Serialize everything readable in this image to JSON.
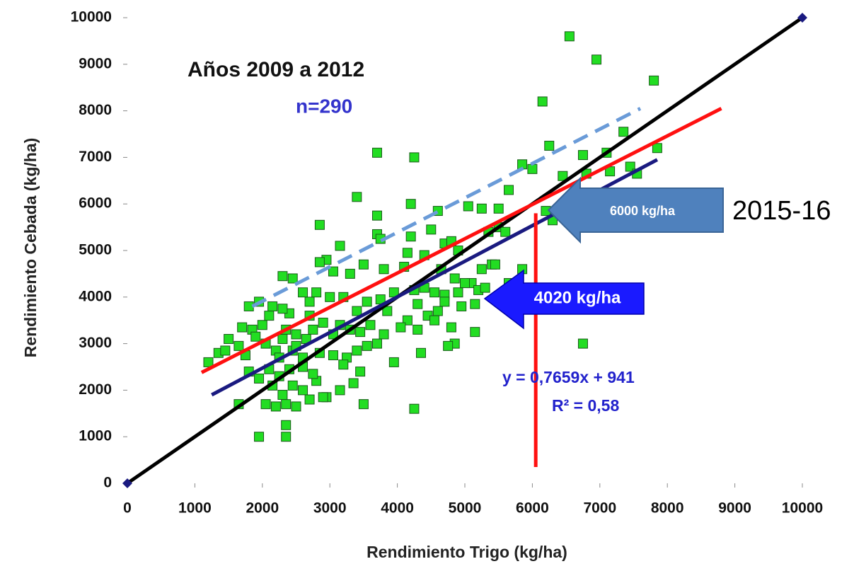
{
  "chart_data": {
    "type": "scatter",
    "xlabel": "Rendimiento Trigo (kg/ha)",
    "ylabel": "Rendimiento Cebada (kg/ha)",
    "xlim": [
      0,
      10000
    ],
    "ylim": [
      0,
      10000
    ],
    "xticks": [
      0,
      1000,
      2000,
      3000,
      4000,
      5000,
      6000,
      7000,
      8000,
      9000,
      10000
    ],
    "yticks": [
      0,
      1000,
      2000,
      3000,
      4000,
      5000,
      6000,
      7000,
      8000,
      9000,
      10000
    ],
    "grid": false,
    "annotations": [
      "Años 2009 a 2012",
      "n=290",
      "y = 0,7659x + 941",
      "R² = 0,58",
      "6000 kg/ha",
      "4020 kg/ha",
      "2015-16"
    ],
    "series": [
      {
        "mode": "markers",
        "color": "#22dd22",
        "x": [
          6550,
          6950,
          7800,
          6150,
          6250,
          7350,
          7100,
          6750,
          6800,
          7150,
          7450,
          7550,
          7850,
          6450,
          5850,
          6000,
          3700,
          4250,
          3400,
          4200,
          5650,
          5050,
          5500,
          6200,
          6300,
          4600,
          3700,
          2850,
          3150,
          3700,
          3750,
          4200,
          4500,
          4700,
          4800,
          5250,
          5350,
          5500,
          5600,
          4900,
          2950,
          2850,
          3050,
          3300,
          2300,
          2450,
          3500,
          3800,
          4100,
          4150,
          4400,
          4650,
          4850,
          5100,
          5250,
          5400,
          5850,
          5650,
          4250,
          4400,
          4550,
          4700,
          4900,
          5000,
          5200,
          5150,
          4700,
          4600,
          4450,
          4300,
          4150,
          3950,
          3750,
          3550,
          3400,
          3200,
          3000,
          2800,
          2700,
          2600,
          2400,
          2300,
          2150,
          1950,
          1800,
          2000,
          1700,
          1850,
          1500,
          1350,
          1200,
          1450,
          1650,
          1900,
          2050,
          2200,
          2350,
          2500,
          2650,
          2750,
          2900,
          3050,
          3150,
          3300,
          3450,
          3600,
          3800,
          4050,
          4300,
          4550,
          4800,
          4850,
          5150,
          4750,
          4350,
          3950,
          3550,
          3400,
          3250,
          3050,
          2850,
          2600,
          2450,
          2250,
          2100,
          1800,
          1950,
          2150,
          2300,
          2450,
          2600,
          2800,
          2950,
          3150,
          3350,
          3450,
          2350,
          2500,
          2700,
          2900,
          2200,
          2050,
          1650,
          1950,
          2350,
          2350,
          4250,
          3500,
          6750,
          2250,
          2400,
          2600,
          2750,
          3200,
          3700,
          3850,
          4950,
          5300,
          5450,
          2100,
          2300,
          1750,
          2500,
          2700
        ],
        "values": [
          9600,
          9100,
          8650,
          8200,
          7250,
          7550,
          7100,
          7050,
          6650,
          6700,
          6800,
          6650,
          7200,
          6600,
          6850,
          6750,
          7100,
          7000,
          6150,
          6000,
          6300,
          5950,
          5900,
          5850,
          5650,
          5850,
          5750,
          5550,
          5100,
          5350,
          5250,
          5300,
          5450,
          5150,
          5200,
          5900,
          5400,
          5500,
          5400,
          5000,
          4800,
          4750,
          4550,
          4500,
          4450,
          4400,
          4700,
          4600,
          4650,
          4950,
          4900,
          4600,
          4400,
          4300,
          4600,
          4700,
          4600,
          4300,
          4150,
          4200,
          4100,
          4050,
          4100,
          4300,
          4150,
          3850,
          3900,
          3700,
          3600,
          3850,
          3500,
          4100,
          3950,
          3900,
          3700,
          4000,
          4000,
          4100,
          3900,
          4100,
          3650,
          3750,
          3800,
          3900,
          3800,
          3400,
          3350,
          3300,
          3100,
          2800,
          2600,
          2850,
          2950,
          3150,
          3000,
          2850,
          3300,
          3200,
          3100,
          3300,
          3450,
          3200,
          3400,
          3300,
          3250,
          3400,
          3200,
          3350,
          3300,
          3500,
          3350,
          3000,
          3250,
          2950,
          2800,
          2600,
          2950,
          2850,
          2700,
          2750,
          2800,
          2700,
          2850,
          2700,
          2450,
          2400,
          2250,
          2100,
          1900,
          2100,
          2000,
          2200,
          1850,
          2000,
          2150,
          2400,
          1700,
          1650,
          1800,
          1850,
          1650,
          1700,
          1700,
          1000,
          1000,
          1250,
          1600,
          1700,
          3000,
          2300,
          2450,
          2500,
          2350,
          2550,
          3000,
          3700,
          3800,
          4200,
          4700,
          3600,
          3100,
          2750,
          2950,
          3600
        ]
      },
      {
        "mode": "line",
        "color": "#6a9bd8",
        "dash": true,
        "x": [
          1850,
          7600
        ],
        "values": [
          3800,
          8050
        ]
      },
      {
        "mode": "line",
        "color": "#000000",
        "marker": "diamond",
        "x": [
          0,
          10000
        ],
        "values": [
          0,
          10000
        ]
      },
      {
        "mode": "line",
        "color": "#1a1a80",
        "x": [
          1250,
          7850
        ],
        "values": [
          1900,
          6950
        ]
      },
      {
        "mode": "line",
        "color": "#ff1010",
        "x": [
          1100,
          8800
        ],
        "values": [
          2380,
          8050
        ]
      },
      {
        "mode": "line",
        "color": "#ff1010",
        "x": [
          6050,
          6050
        ],
        "values": [
          350,
          5800
        ]
      }
    ]
  }
}
